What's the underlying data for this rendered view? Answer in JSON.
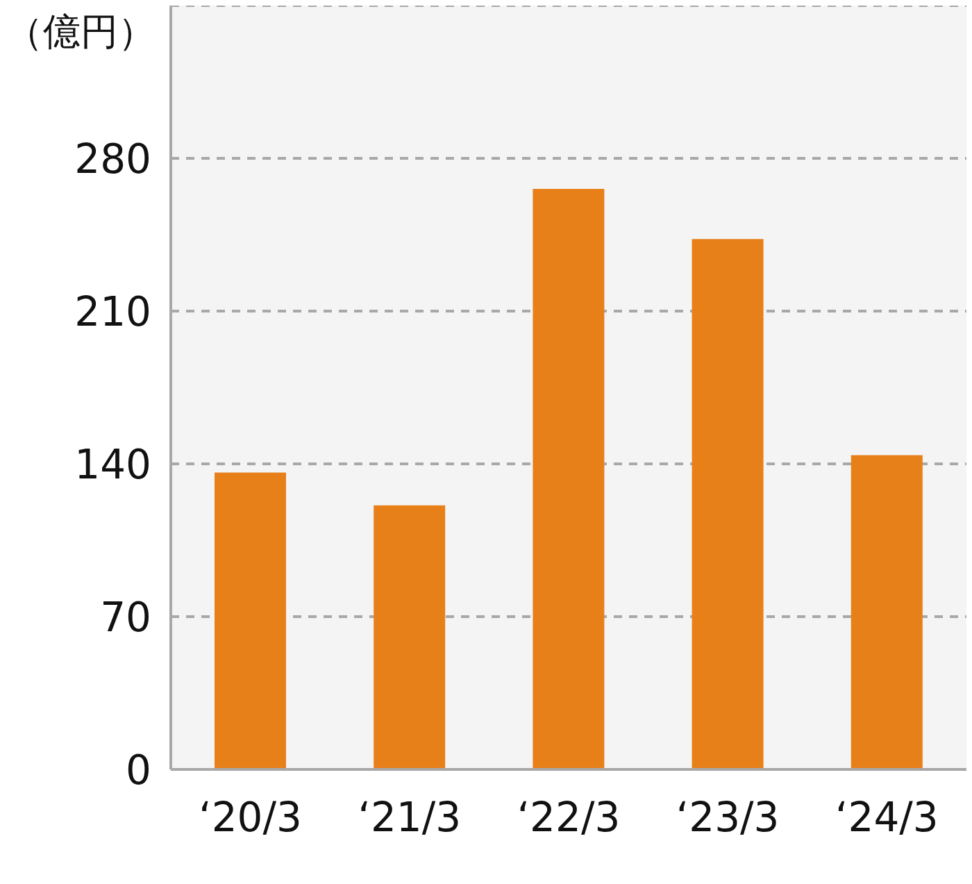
{
  "chart_data": {
    "type": "bar",
    "ylabel": "（億円）",
    "categories": [
      "‘20/3",
      "‘21/3",
      "‘22/3",
      "‘23/3",
      "‘24/3"
    ],
    "values": [
      136,
      121,
      266,
      243,
      144
    ],
    "color": "#e8801a",
    "ylim": [
      0,
      350
    ],
    "yticks": [
      0,
      70,
      140,
      210,
      280
    ],
    "grid": "y",
    "legend": false
  }
}
